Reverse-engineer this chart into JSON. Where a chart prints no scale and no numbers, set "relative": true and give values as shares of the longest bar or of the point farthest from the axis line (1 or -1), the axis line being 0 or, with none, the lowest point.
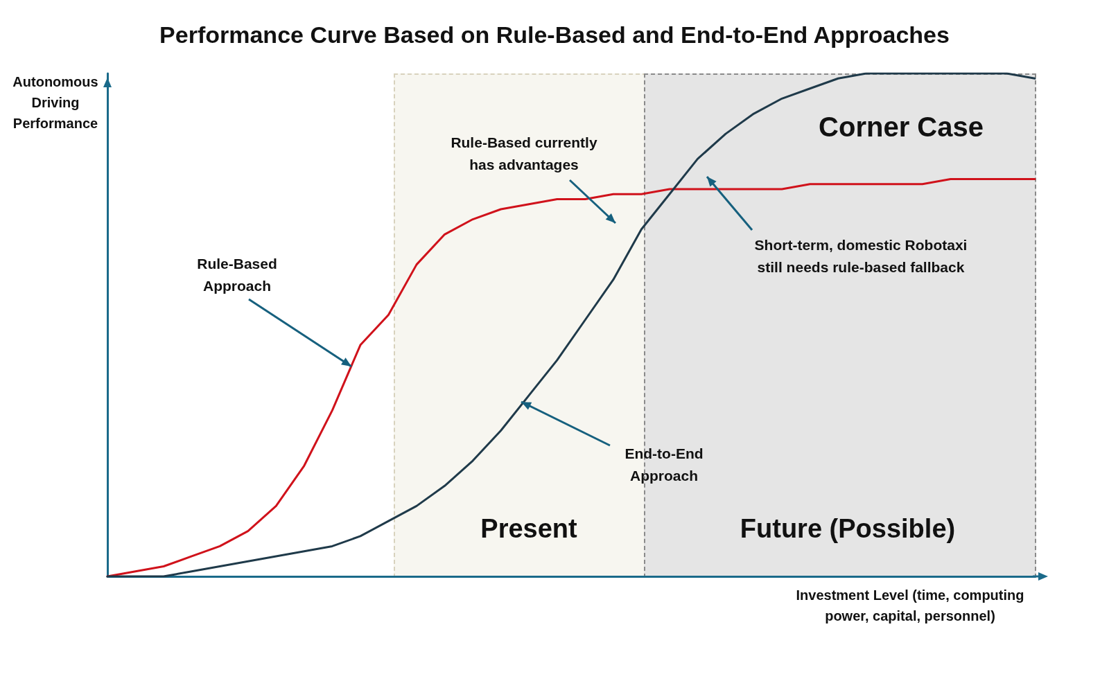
{
  "chart_data": {
    "type": "line",
    "title": "Performance Curve Based on Rule-Based and End-to-End Approaches",
    "xlabel": "Investment Level (time, computing power, capital, personnel)",
    "ylabel": "Autonomous Driving Performance",
    "relative": true,
    "marker": "none",
    "line_style": "solid",
    "categories": [
      null,
      null,
      null,
      null,
      null,
      null,
      null,
      null,
      null,
      null,
      null,
      null,
      null,
      null,
      null,
      null,
      null,
      null,
      null,
      null,
      null,
      null,
      null,
      null,
      null,
      null,
      null,
      null,
      null,
      null,
      null,
      null,
      null,
      null
    ],
    "series": [
      {
        "color": "#d0121b",
        "values": [
          0,
          0.01,
          0.02,
          0.04,
          0.06,
          0.09,
          0.14,
          0.22,
          0.33,
          0.46,
          0.52,
          0.62,
          0.68,
          0.71,
          0.73,
          0.74,
          0.75,
          0.75,
          0.76,
          0.76,
          0.77,
          0.77,
          0.77,
          0.77,
          0.77,
          0.78,
          0.78,
          0.78,
          0.78,
          0.78,
          0.79,
          0.79,
          0.79,
          0.79
        ]
      },
      {
        "color": "#1f3a4a",
        "values": [
          0,
          0,
          0,
          0.01,
          0.02,
          0.03,
          0.04,
          0.05,
          0.06,
          0.08,
          0.11,
          0.14,
          0.18,
          0.23,
          0.29,
          0.36,
          0.43,
          0.51,
          0.59,
          0.69,
          0.76,
          0.83,
          0.88,
          0.92,
          0.95,
          0.97,
          0.99,
          1,
          1,
          1,
          1,
          1,
          1,
          0.99
        ]
      }
    ],
    "annotations": [
      "Rule-Based Approach",
      "Rule-Based currently has advantages",
      "Short-term, domestic Robotaxi still needs rule-based fallback",
      "End-to-End Approach",
      "Corner Case",
      "Present",
      "Future (Possible)"
    ]
  }
}
